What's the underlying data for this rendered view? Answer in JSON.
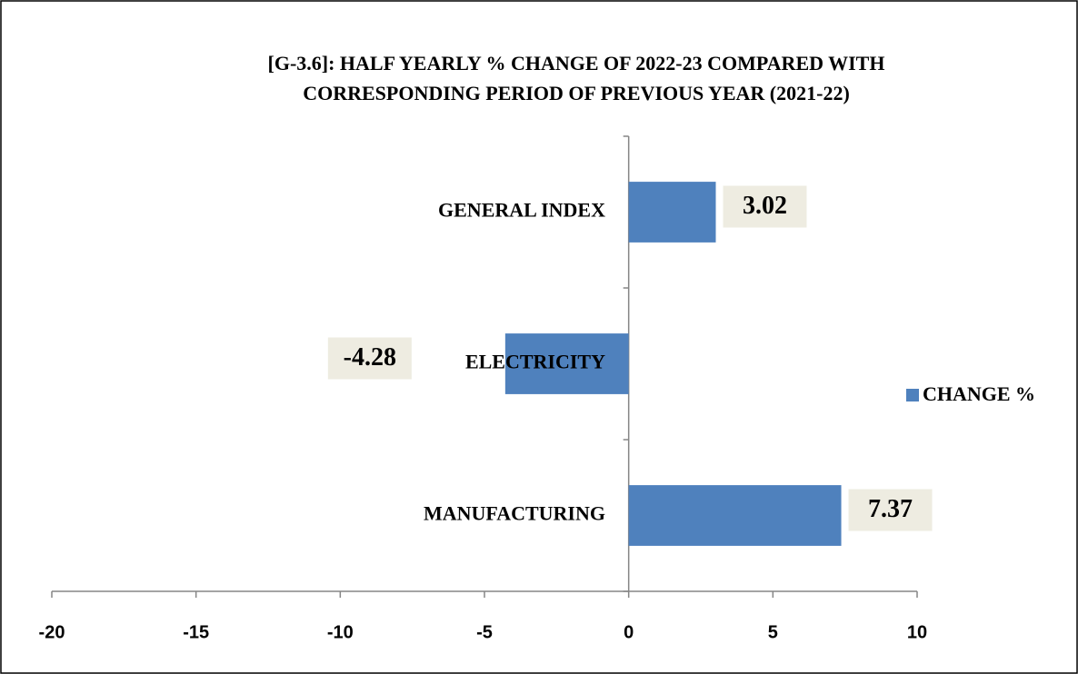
{
  "chart_data": {
    "type": "barh",
    "title": [
      "[G-3.6]: HALF YEARLY % CHANGE OF 2022-23 COMPARED WITH",
      "CORRESPONDING PERIOD OF PREVIOUS YEAR (2021-22)"
    ],
    "categories": [
      "GENERAL INDEX",
      "ELECTRICITY",
      "MANUFACTURING"
    ],
    "series": [
      {
        "name": "CHANGE %",
        "color": "#4f81bd",
        "values": [
          3.02,
          -4.28,
          7.37
        ]
      }
    ],
    "xlim": [
      -20,
      10
    ],
    "xticks": [
      -20,
      -15,
      -10,
      -5,
      0,
      5,
      10
    ],
    "legend": "right"
  }
}
